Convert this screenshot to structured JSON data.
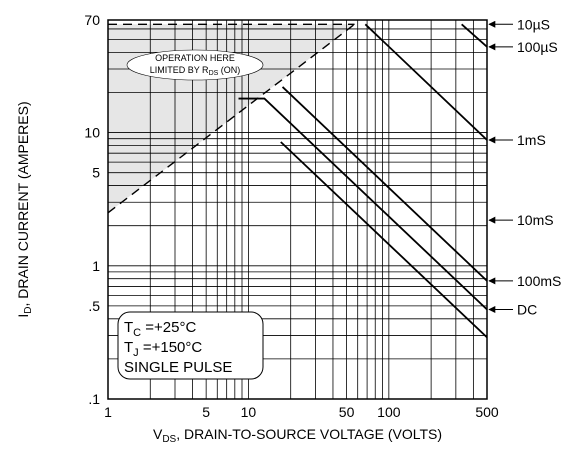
{
  "chart_data": {
    "type": "line",
    "title": "",
    "xlabel": {
      "main": "V",
      "sub": "DS",
      "rest": ", DRAIN-TO-SOURCE VOLTAGE (VOLTS)"
    },
    "ylabel": {
      "main": "I",
      "sub": "D",
      "rest": ", DRAIN CURRENT (AMPERES)"
    },
    "xscale": "log",
    "yscale": "log",
    "xlim": [
      1,
      500
    ],
    "ylim": [
      0.1,
      70
    ],
    "grid": true,
    "x_ticks": [
      {
        "value": 1,
        "label": "1"
      },
      {
        "value": 5,
        "label": "5"
      },
      {
        "value": 10,
        "label": "10"
      },
      {
        "value": 50,
        "label": "50"
      },
      {
        "value": 100,
        "label": "100"
      },
      {
        "value": 500,
        "label": "500"
      }
    ],
    "y_ticks": [
      {
        "value": 70,
        "label": "70"
      },
      {
        "value": 10,
        "label": "10"
      },
      {
        "value": 5,
        "label": "5"
      },
      {
        "value": 1,
        "label": "1"
      },
      {
        "value": 0.5,
        "label": ".5"
      },
      {
        "value": 0.1,
        "label": ".1"
      }
    ],
    "rds_limit": {
      "points": [
        [
          1,
          2.5
        ],
        [
          57,
          65
        ]
      ],
      "region_label_1": "OPERATION HERE",
      "region_label_2": "LIMITED BY R",
      "region_label_sub": "DS",
      "region_label_3": " (ON)"
    },
    "current_limit": {
      "value": 65
    },
    "series": [
      {
        "name": "10µS",
        "points": [
          [
            330,
            65
          ],
          [
            500,
            44
          ]
        ]
      },
      {
        "name": "100µS",
        "points": [
          [
            68,
            65
          ],
          [
            500,
            8.8
          ]
        ]
      },
      {
        "name": "1mS",
        "points": [
          [
            17.5,
            22
          ],
          [
            500,
            0.77
          ]
        ]
      },
      {
        "name": "10mS",
        "points": [
          [
            8.5,
            18
          ],
          [
            13,
            18
          ],
          [
            500,
            0.47
          ]
        ]
      },
      {
        "name": "DC",
        "points": [
          [
            17,
            8.5
          ],
          [
            500,
            0.29
          ]
        ]
      }
    ],
    "line_labels": [
      {
        "text": "10µS",
        "y": 65
      },
      {
        "text": "100µS",
        "y": 44
      },
      {
        "text": "1mS",
        "y": 8.8
      },
      {
        "text": "10mS",
        "y": 2.2
      },
      {
        "text": "100mS",
        "y": 0.77
      },
      {
        "text": "DC",
        "y": 0.47
      }
    ],
    "conditions": [
      {
        "main": "T",
        "sub": "C",
        "rest": " =+25°C"
      },
      {
        "main": "T",
        "sub": "J",
        "rest": " =+150°C"
      },
      {
        "main": "SINGLE PULSE",
        "sub": "",
        "rest": ""
      }
    ],
    "colors": {
      "line": "#000000",
      "grid": "#000000",
      "region_fill": "#e6e6e6"
    }
  }
}
